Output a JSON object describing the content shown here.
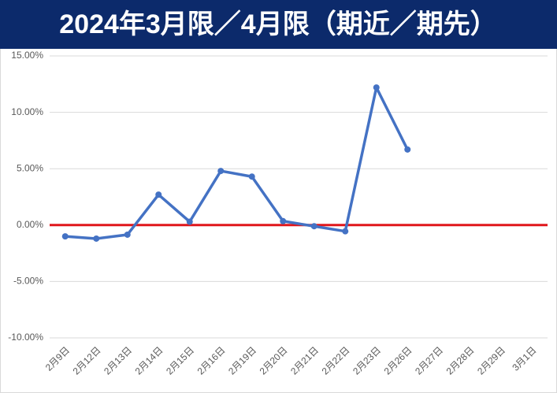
{
  "chart_data": {
    "type": "line",
    "title": "2024年3月限／4月限（期近／期先）",
    "categories": [
      "2月9日",
      "2月12日",
      "2月13日",
      "2月14日",
      "2月15日",
      "2月16日",
      "2月19日",
      "2月20日",
      "2月21日",
      "2月22日",
      "2月23日",
      "2月26日",
      "2月27日",
      "2月28日",
      "2月29日",
      "3月1日"
    ],
    "series": [
      {
        "color": "#4472c4",
        "values": [
          -1.0,
          -1.2,
          -0.85,
          2.7,
          0.3,
          4.8,
          4.3,
          0.35,
          -0.1,
          -0.55,
          12.2,
          6.7,
          null,
          null,
          null,
          null
        ]
      }
    ],
    "ylim": [
      -10,
      15
    ],
    "yticks": [
      {
        "value": -10,
        "label": "-10.00%"
      },
      {
        "value": -5,
        "label": "-5.00%"
      },
      {
        "value": 0,
        "label": "0.00%"
      },
      {
        "value": 5,
        "label": "5.00%"
      },
      {
        "value": 10,
        "label": "10.00%"
      },
      {
        "value": 15,
        "label": "15.00%"
      }
    ],
    "grid": true,
    "zero_line_color": "#e0161b"
  }
}
